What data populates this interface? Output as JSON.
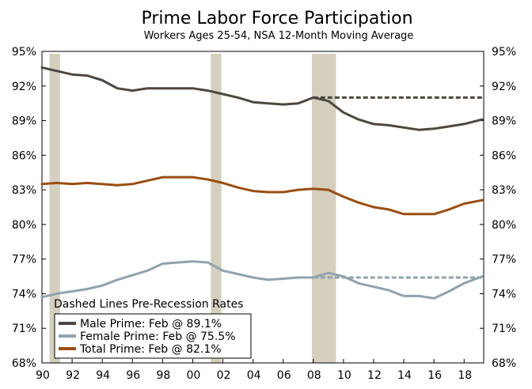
{
  "chart_data": {
    "type": "line",
    "title": "Prime Labor Force Participation",
    "subtitle": "Workers Ages 25-54, NSA 12-Month Moving Average",
    "xlabel": "",
    "ylabel": "",
    "xlim": [
      1990,
      2019.3
    ],
    "ylim": [
      68,
      95
    ],
    "y_ticks": [
      95,
      92,
      89,
      86,
      83,
      80,
      77,
      74,
      71,
      68
    ],
    "y_tick_labels": [
      "95%",
      "92%",
      "89%",
      "86%",
      "83%",
      "80%",
      "77%",
      "74%",
      "71%",
      "68%"
    ],
    "x_ticks": [
      1990,
      1992,
      1994,
      1996,
      1998,
      2000,
      2002,
      2004,
      2006,
      2008,
      2010,
      2012,
      2014,
      2016,
      2018
    ],
    "x_tick_labels": [
      "90",
      "92",
      "94",
      "96",
      "98",
      "00",
      "02",
      "04",
      "06",
      "08",
      "10",
      "12",
      "14",
      "16",
      "18"
    ],
    "recessions": [
      {
        "start": 1990.5,
        "end": 1991.2
      },
      {
        "start": 2001.2,
        "end": 2001.9
      },
      {
        "start": 2007.9,
        "end": 2009.5
      }
    ],
    "series": [
      {
        "name": "Male Prime",
        "color": "#4d4741",
        "x": [
          1990,
          1991,
          1992,
          1993,
          1994,
          1995,
          1996,
          1997,
          1998,
          1999,
          2000,
          2001,
          2002,
          2003,
          2004,
          2005,
          2006,
          2007,
          2008,
          2009,
          2010,
          2011,
          2012,
          2013,
          2014,
          2015,
          2016,
          2017,
          2018,
          2019.2
        ],
        "values": [
          93.6,
          93.3,
          93.0,
          92.9,
          92.5,
          91.8,
          91.6,
          91.8,
          91.8,
          91.8,
          91.8,
          91.6,
          91.3,
          91.0,
          90.6,
          90.5,
          90.4,
          90.5,
          91.0,
          90.7,
          89.7,
          89.1,
          88.7,
          88.6,
          88.4,
          88.2,
          88.3,
          88.5,
          88.7,
          89.1
        ]
      },
      {
        "name": "Female Prime",
        "color": "#8fa3ae",
        "x": [
          1990,
          1991,
          1992,
          1993,
          1994,
          1995,
          1996,
          1997,
          1998,
          1999,
          2000,
          2001,
          2002,
          2003,
          2004,
          2005,
          2006,
          2007,
          2008,
          2009,
          2010,
          2011,
          2012,
          2013,
          2014,
          2015,
          2016,
          2017,
          2018,
          2019.2
        ],
        "values": [
          73.7,
          74.0,
          74.2,
          74.4,
          74.7,
          75.2,
          75.6,
          76.0,
          76.6,
          76.7,
          76.8,
          76.7,
          76.0,
          75.7,
          75.4,
          75.2,
          75.3,
          75.4,
          75.4,
          75.8,
          75.5,
          74.9,
          74.6,
          74.3,
          73.8,
          73.8,
          73.6,
          74.2,
          74.9,
          75.5
        ]
      },
      {
        "name": "Total Prime",
        "color": "#9a4e10",
        "x": [
          1990,
          1991,
          1992,
          1993,
          1994,
          1995,
          1996,
          1997,
          1998,
          1999,
          2000,
          2001,
          2002,
          2003,
          2004,
          2005,
          2006,
          2007,
          2008,
          2009,
          2010,
          2011,
          2012,
          2013,
          2014,
          2015,
          2016,
          2017,
          2018,
          2019.2
        ],
        "values": [
          83.5,
          83.6,
          83.5,
          83.6,
          83.5,
          83.4,
          83.5,
          83.8,
          84.1,
          84.1,
          84.1,
          83.9,
          83.6,
          83.2,
          82.9,
          82.8,
          82.8,
          83.0,
          83.1,
          83.0,
          82.4,
          81.9,
          81.5,
          81.3,
          80.9,
          80.9,
          80.9,
          81.3,
          81.8,
          82.1
        ]
      }
    ],
    "dashed_lines": [
      {
        "name": "Male pre-recession rate",
        "color": "#4d4741",
        "start": 2008,
        "end": 2019.2,
        "value": 91.0
      },
      {
        "name": "Female pre-recession rate",
        "color": "#8fa3ae",
        "start": 2008,
        "end": 2019.2,
        "value": 75.4
      }
    ],
    "legend": {
      "title": "Dashed Lines Pre-Recession Rates",
      "placement": "bottom-left",
      "entries": [
        {
          "label": "Male Prime: Feb @ 89.1%",
          "color": "#4d4741"
        },
        {
          "label": "Female Prime: Feb @ 75.5%",
          "color": "#8fa3ae"
        },
        {
          "label": "Total Prime: Feb @ 82.1%",
          "color": "#9a4e10"
        }
      ]
    },
    "grid": false,
    "recession_color": "#d4cfbf"
  }
}
